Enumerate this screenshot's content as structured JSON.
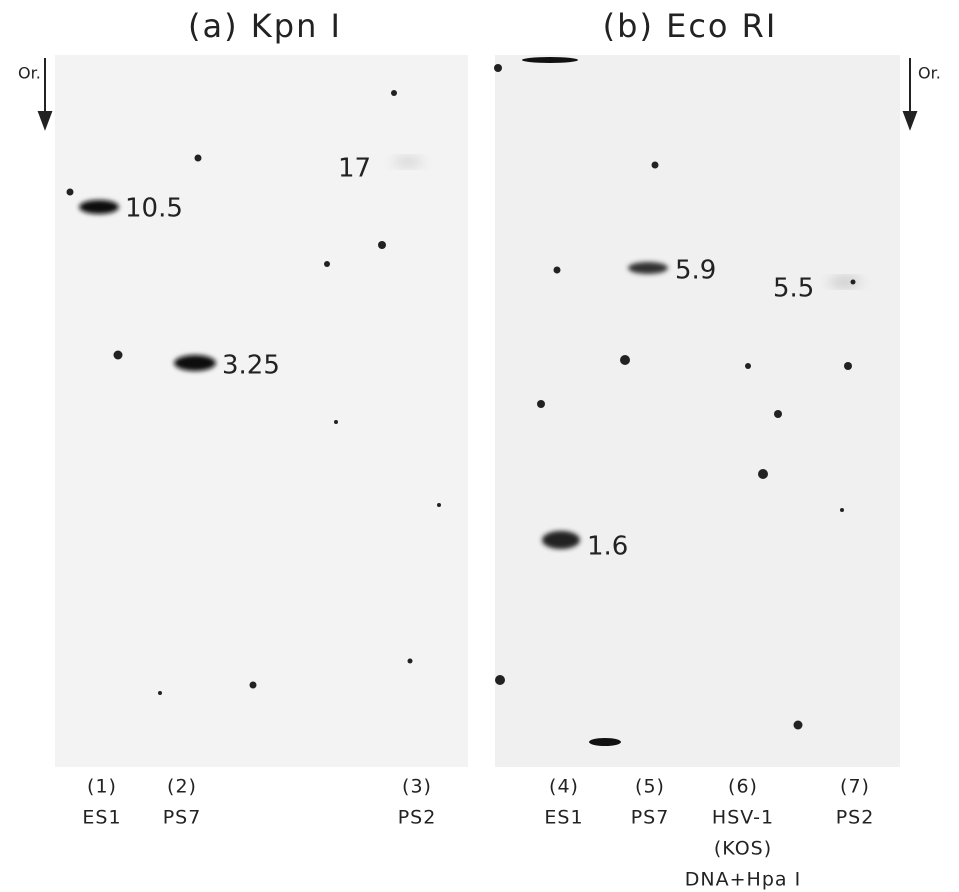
{
  "panels": [
    {
      "title": "(a) Kpn I",
      "origin": "Or.",
      "bands": [
        "10.5",
        "3.25",
        "17"
      ]
    },
    {
      "title": "(b) Eco RI",
      "origin": "Or.",
      "bands": [
        "5.9",
        "5.5",
        "1.6"
      ]
    }
  ],
  "lanes": [
    {
      "number": "(1)",
      "label": [
        "ES1"
      ]
    },
    {
      "number": "(2)",
      "label": [
        "PS7"
      ]
    },
    {
      "number": "(3)",
      "label": [
        "PS2"
      ]
    },
    {
      "number": "(4)",
      "label": [
        "ES1"
      ]
    },
    {
      "number": "(5)",
      "label": [
        "PS7"
      ]
    },
    {
      "number": "(6)",
      "label": [
        "HSV-1",
        "(KOS)",
        "DNA+Hpa I"
      ]
    },
    {
      "number": "(7)",
      "label": [
        "PS2"
      ]
    }
  ]
}
